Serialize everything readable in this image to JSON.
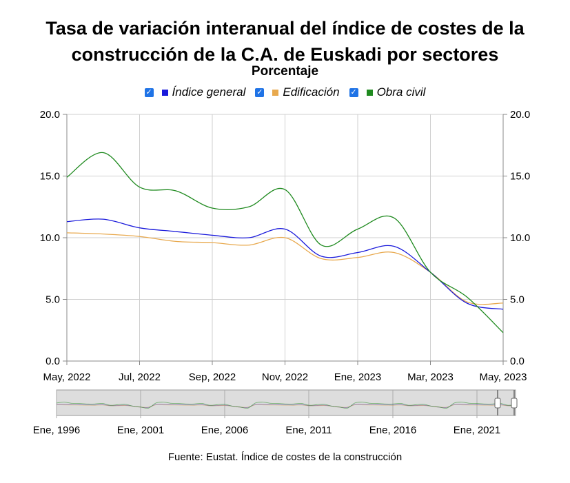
{
  "header": {
    "title_line1": "Tasa de variación interanual del índice de costes de la",
    "title_line2": "construcción de la C.A. de Euskadi por sectores",
    "subtitle": "Porcentaje"
  },
  "legend": [
    {
      "label": "Índice general",
      "color": "#1a1adb",
      "checked": true
    },
    {
      "label": "Edificación",
      "color": "#e8a94e",
      "checked": true
    },
    {
      "label": "Obra civil",
      "color": "#1f8a1f",
      "checked": true
    }
  ],
  "source": "Fuente: Eustat. Índice de costes de la construcción",
  "chart_data": {
    "type": "line",
    "title": "Tasa de variación interanual del índice de costes de la construcción de la C.A. de Euskadi por sectores",
    "subtitle": "Porcentaje",
    "ylim": [
      0,
      20
    ],
    "y_ticks": [
      "0.0",
      "5.0",
      "10.0",
      "15.0",
      "20.0"
    ],
    "x_ticks": [
      "May, 2022",
      "Jul, 2022",
      "Sep, 2022",
      "Nov, 2022",
      "Ene, 2023",
      "Mar, 2023",
      "May, 2023"
    ],
    "grid": true,
    "legend_position": "top-center",
    "x": [
      "2022-05",
      "2022-06",
      "2022-07",
      "2022-08",
      "2022-09",
      "2022-10",
      "2022-11",
      "2022-12",
      "2023-01",
      "2023-02",
      "2023-03",
      "2023-04",
      "2023-05"
    ],
    "series": [
      {
        "name": "Índice general",
        "color": "#1a1adb",
        "values": [
          11.3,
          11.5,
          10.8,
          10.5,
          10.2,
          10.0,
          10.7,
          8.5,
          8.8,
          9.3,
          7.2,
          4.7,
          4.2
        ]
      },
      {
        "name": "Edificación",
        "color": "#e8a94e",
        "values": [
          10.4,
          10.3,
          10.1,
          9.7,
          9.6,
          9.4,
          10.0,
          8.3,
          8.4,
          8.8,
          7.2,
          4.8,
          4.7
        ]
      },
      {
        "name": "Obra civil",
        "color": "#1f8a1f",
        "values": [
          14.9,
          16.9,
          14.1,
          13.8,
          12.4,
          12.5,
          13.9,
          9.4,
          10.7,
          11.6,
          7.2,
          5.2,
          2.3
        ]
      }
    ],
    "navigator": {
      "x_ticks": [
        "Ene, 1996",
        "Ene, 2001",
        "Ene, 2006",
        "Ene, 2011",
        "Ene, 2016",
        "Ene, 2021"
      ]
    }
  }
}
